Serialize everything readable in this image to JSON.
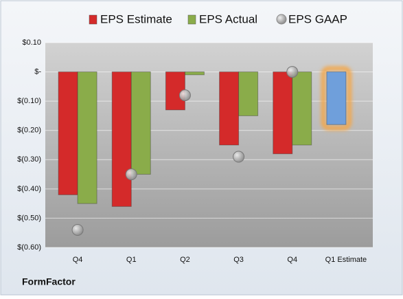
{
  "chart_data": {
    "type": "bar",
    "source_label": "FormFactor",
    "categories": [
      "Q4",
      "Q1",
      "Q2",
      "Q3",
      "Q4",
      "Q1 Estimate"
    ],
    "series": [
      {
        "name": "EPS Estimate",
        "type": "bar",
        "color": "#d42a2a",
        "colors": [
          "#d42a2a",
          "#d42a2a",
          "#d42a2a",
          "#d42a2a",
          "#d42a2a",
          "#6f9fdb"
        ],
        "values": [
          -0.42,
          -0.46,
          -0.13,
          -0.25,
          -0.28,
          -0.18
        ]
      },
      {
        "name": "EPS Actual",
        "type": "bar",
        "color": "#8aac4a",
        "values": [
          -0.45,
          -0.35,
          -0.01,
          -0.15,
          -0.25,
          null
        ]
      },
      {
        "name": "EPS GAAP",
        "type": "scatter",
        "color": "#a8a8a8",
        "values": [
          -0.54,
          -0.35,
          -0.08,
          -0.29,
          0.0,
          null
        ]
      }
    ],
    "highlight_glow": "#f5a644",
    "ylim": [
      -0.6,
      0.1
    ],
    "yticks": [
      {
        "value": 0.1,
        "label": "$0.10"
      },
      {
        "value": 0,
        "label": "$-"
      },
      {
        "value": -0.1,
        "label": "$(0.10)"
      },
      {
        "value": -0.2,
        "label": "$(0.20)"
      },
      {
        "value": -0.3,
        "label": "$(0.30)"
      },
      {
        "value": -0.4,
        "label": "$(0.40)"
      },
      {
        "value": -0.5,
        "label": "$(0.50)"
      },
      {
        "value": -0.6,
        "label": "$(0.60)"
      }
    ],
    "grid": true
  }
}
